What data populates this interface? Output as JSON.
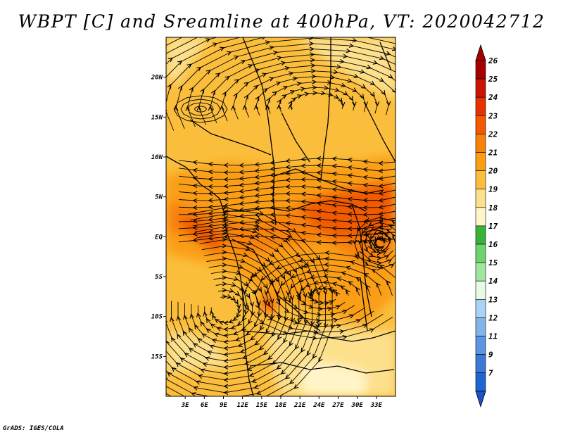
{
  "title": "WBPT [C] and Sreamline at 400hPa, VT: 2020042712",
  "credit": "GrADS: IGES/COLA",
  "map": {
    "lon_range": [
      0,
      36
    ],
    "lat_range": [
      -20,
      25
    ],
    "lon_ticks": [
      {
        "value": 3,
        "label": "3E"
      },
      {
        "value": 6,
        "label": "6E"
      },
      {
        "value": 9,
        "label": "9E"
      },
      {
        "value": 12,
        "label": "12E"
      },
      {
        "value": 15,
        "label": "15E"
      },
      {
        "value": 18,
        "label": "18E"
      },
      {
        "value": 21,
        "label": "21E"
      },
      {
        "value": 24,
        "label": "24E"
      },
      {
        "value": 27,
        "label": "27E"
      },
      {
        "value": 30,
        "label": "30E"
      },
      {
        "value": 33,
        "label": "33E"
      }
    ],
    "lat_ticks": [
      {
        "value": 20,
        "label": "20N"
      },
      {
        "value": 15,
        "label": "15N"
      },
      {
        "value": 10,
        "label": "10N"
      },
      {
        "value": 5,
        "label": "5N"
      },
      {
        "value": 0,
        "label": "EQ"
      },
      {
        "value": -5,
        "label": "5S"
      },
      {
        "value": -10,
        "label": "10S"
      },
      {
        "value": -15,
        "label": "15S"
      }
    ]
  },
  "colorbar": {
    "levels": [
      {
        "label": "26",
        "color": "#a50000"
      },
      {
        "label": "25",
        "color": "#c81400"
      },
      {
        "label": "24",
        "color": "#e63200"
      },
      {
        "label": "23",
        "color": "#f05a00"
      },
      {
        "label": "22",
        "color": "#f7820a"
      },
      {
        "label": "21",
        "color": "#fa9e14"
      },
      {
        "label": "20",
        "color": "#fbbe3c"
      },
      {
        "label": "19",
        "color": "#fde08c"
      },
      {
        "label": "18",
        "color": "#fff5c8"
      },
      {
        "label": "17",
        "color": "#37b437"
      },
      {
        "label": "16",
        "color": "#6ed26e"
      },
      {
        "label": "15",
        "color": "#a0e6a0"
      },
      {
        "label": "14",
        "color": "#e6fae6"
      },
      {
        "label": "13",
        "color": "#aad2f5"
      },
      {
        "label": "12",
        "color": "#82b4eb"
      },
      {
        "label": "11",
        "color": "#5a96e1"
      },
      {
        "label": "9",
        "color": "#3c78d7"
      },
      {
        "label": "7",
        "color": "#1e64d2"
      }
    ],
    "bottom_color": "#1e50c8"
  }
}
